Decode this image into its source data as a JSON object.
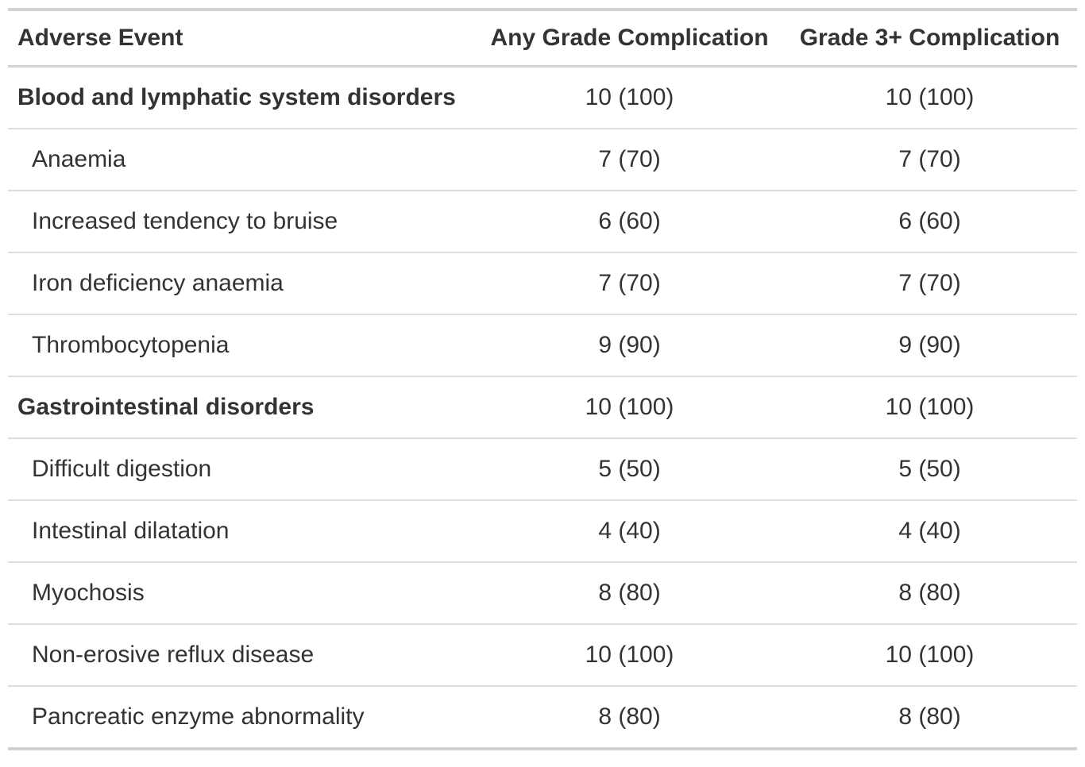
{
  "colors": {
    "text": "#333333",
    "border_thick": "#d2d2d2",
    "border_thin": "#dedede",
    "background": "#ffffff"
  },
  "table": {
    "columns": [
      "Adverse Event",
      "Any Grade Complication",
      "Grade 3+ Complication"
    ],
    "rows": [
      {
        "label": "Blood and lymphatic system disorders",
        "any_grade": "10 (100)",
        "grade_3_plus": "10 (100)"
      },
      {
        "label": "Anaemia",
        "any_grade": "7 (70)",
        "grade_3_plus": "7 (70)"
      },
      {
        "label": "Increased tendency to bruise",
        "any_grade": "6 (60)",
        "grade_3_plus": "6 (60)"
      },
      {
        "label": "Iron deficiency anaemia",
        "any_grade": "7 (70)",
        "grade_3_plus": "7 (70)"
      },
      {
        "label": "Thrombocytopenia",
        "any_grade": "9 (90)",
        "grade_3_plus": "9 (90)"
      },
      {
        "label": "Gastrointestinal disorders",
        "any_grade": "10 (100)",
        "grade_3_plus": "10 (100)"
      },
      {
        "label": "Difficult digestion",
        "any_grade": "5 (50)",
        "grade_3_plus": "5 (50)"
      },
      {
        "label": "Intestinal dilatation",
        "any_grade": "4 (40)",
        "grade_3_plus": "4 (40)"
      },
      {
        "label": "Myochosis",
        "any_grade": "8 (80)",
        "grade_3_plus": "8 (80)"
      },
      {
        "label": "Non-erosive reflux disease",
        "any_grade": "10 (100)",
        "grade_3_plus": "10 (100)"
      },
      {
        "label": "Pancreatic enzyme abnormality",
        "any_grade": "8 (80)",
        "grade_3_plus": "8 (80)"
      }
    ]
  },
  "chart_data": {
    "type": "table",
    "title": "",
    "columns": [
      "Adverse Event",
      "Any Grade Complication",
      "Grade 3+ Complication"
    ],
    "value_format": "n (%)",
    "rows": [
      {
        "adverse_event": "Blood and lymphatic system disorders",
        "is_category": true,
        "any_grade_n": 10,
        "any_grade_pct": 100,
        "grade_3_plus_n": 10,
        "grade_3_plus_pct": 100
      },
      {
        "adverse_event": "Anaemia",
        "is_category": false,
        "any_grade_n": 7,
        "any_grade_pct": 70,
        "grade_3_plus_n": 7,
        "grade_3_plus_pct": 70
      },
      {
        "adverse_event": "Increased tendency to bruise",
        "is_category": false,
        "any_grade_n": 6,
        "any_grade_pct": 60,
        "grade_3_plus_n": 6,
        "grade_3_plus_pct": 60
      },
      {
        "adverse_event": "Iron deficiency anaemia",
        "is_category": false,
        "any_grade_n": 7,
        "any_grade_pct": 70,
        "grade_3_plus_n": 7,
        "grade_3_plus_pct": 70
      },
      {
        "adverse_event": "Thrombocytopenia",
        "is_category": false,
        "any_grade_n": 9,
        "any_grade_pct": 90,
        "grade_3_plus_n": 9,
        "grade_3_plus_pct": 90
      },
      {
        "adverse_event": "Gastrointestinal disorders",
        "is_category": true,
        "any_grade_n": 10,
        "any_grade_pct": 100,
        "grade_3_plus_n": 10,
        "grade_3_plus_pct": 100
      },
      {
        "adverse_event": "Difficult digestion",
        "is_category": false,
        "any_grade_n": 5,
        "any_grade_pct": 50,
        "grade_3_plus_n": 5,
        "grade_3_plus_pct": 50
      },
      {
        "adverse_event": "Intestinal dilatation",
        "is_category": false,
        "any_grade_n": 4,
        "any_grade_pct": 40,
        "grade_3_plus_n": 4,
        "grade_3_plus_pct": 40
      },
      {
        "adverse_event": "Myochosis",
        "is_category": false,
        "any_grade_n": 8,
        "any_grade_pct": 80,
        "grade_3_plus_n": 8,
        "grade_3_plus_pct": 80
      },
      {
        "adverse_event": "Non-erosive reflux disease",
        "is_category": false,
        "any_grade_n": 10,
        "any_grade_pct": 100,
        "grade_3_plus_n": 10,
        "grade_3_plus_pct": 100
      },
      {
        "adverse_event": "Pancreatic enzyme abnormality",
        "is_category": false,
        "any_grade_n": 8,
        "any_grade_pct": 80,
        "grade_3_plus_n": 8,
        "grade_3_plus_pct": 80
      }
    ]
  }
}
